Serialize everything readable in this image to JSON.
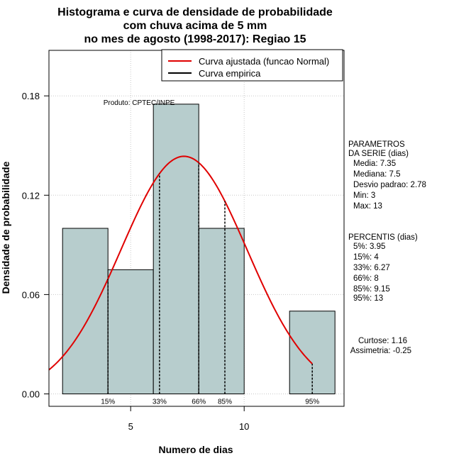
{
  "chart_data": {
    "type": "bar",
    "title_lines": [
      "Histograma e curva de densidade de probabilidade",
      "com chuva acima de 5 mm",
      "no mes de agosto (1998-2017): Regiao 15"
    ],
    "xlabel": "Numero de dias",
    "ylabel": "Densidade de probabilidade",
    "xlim": [
      1.4,
      14.4
    ],
    "ylim": [
      -0.0075,
      0.2075
    ],
    "x_ticks": [
      5,
      10
    ],
    "y_ticks": [
      0.0,
      0.06,
      0.12,
      0.18
    ],
    "y_tick_labels": [
      "0.00",
      "0.06",
      "0.12",
      "0.18"
    ],
    "grid": true,
    "histogram": {
      "bins": [
        {
          "x0": 2,
          "x1": 4,
          "density": 0.1
        },
        {
          "x0": 4,
          "x1": 6,
          "density": 0.075
        },
        {
          "x0": 6,
          "x1": 8,
          "density": 0.175
        },
        {
          "x0": 8,
          "x1": 10,
          "density": 0.1
        },
        {
          "x0": 10,
          "x1": 12,
          "density": 0.0
        },
        {
          "x0": 12,
          "x1": 14,
          "density": 0.05
        }
      ],
      "fill_color": "#b7cdcd"
    },
    "series": [
      {
        "name": "Curva ajustada (funcao Normal)",
        "type": "normal_curve",
        "mean": 7.35,
        "sd": 2.78,
        "x_from": 1.4,
        "x_to": 13,
        "color": "#e00000"
      },
      {
        "name": "Curva empirica",
        "type": "line",
        "color": "#000000"
      }
    ],
    "percentile_markers": [
      {
        "label": "15%",
        "x": 4
      },
      {
        "label": "33%",
        "x": 6.27
      },
      {
        "label": "66%",
        "x": 8
      },
      {
        "label": "85%",
        "x": 9.15
      },
      {
        "label": "95%",
        "x": 13
      }
    ],
    "legend_position": "top-right",
    "credit": "Produto: CPTEC/INPE"
  },
  "parametros": {
    "heading_lines": [
      "PARAMETROS",
      "DA SERIE (dias)"
    ],
    "items": [
      "Media: 7.35",
      "Mediana: 7.5",
      "Desvio padrao: 2.78",
      "Min: 3",
      "Max: 13"
    ]
  },
  "percentis": {
    "heading": "PERCENTIS (dias)",
    "items": [
      "5%: 3.95",
      "15%: 4",
      "33%: 6.27",
      "66%: 8",
      "85%: 9.15",
      "95%: 13"
    ]
  },
  "shape": {
    "curtose": "Curtose: 1.16",
    "assimetria": "Assimetria: -0.25"
  }
}
